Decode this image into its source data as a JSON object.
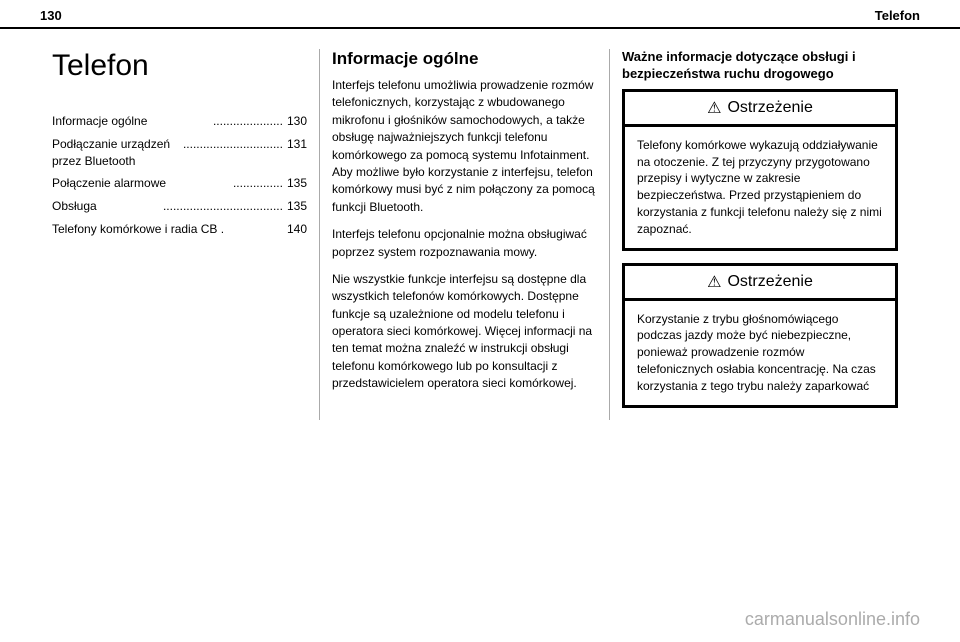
{
  "header": {
    "page_number": "130",
    "section_name": "Telefon"
  },
  "col1": {
    "title": "Telefon",
    "toc": [
      {
        "label": "Informacje ogólne",
        "dots": ".....................",
        "page": "130"
      },
      {
        "label": "Podłączanie urządzeń przez Bluetooth",
        "dots": "..............................",
        "page": "131"
      },
      {
        "label": "Połączenie alarmowe",
        "dots": "...............",
        "page": "135"
      },
      {
        "label": "Obsługa",
        "dots": "....................................",
        "page": "135"
      },
      {
        "label": "Telefony komórkowe i radia CB .",
        "dots": "",
        "page": "140"
      }
    ]
  },
  "col2": {
    "heading": "Informacje ogólne",
    "para1": "Interfejs telefonu umożliwia prowadzenie rozmów telefonicznych, korzystając z wbudowanego mikrofonu i głośników samochodowych, a także obsługę najważniejszych funkcji telefonu komórkowego za pomocą systemu Infotainment. Aby możliwe było korzystanie z interfejsu, telefon komórkowy musi być z nim połączony za pomocą funkcji Bluetooth.",
    "para2": "Interfejs telefonu opcjonalnie można obsługiwać poprzez system rozpoznawania mowy.",
    "para3": "Nie wszystkie funkcje interfejsu są dostępne dla wszystkich telefonów komórkowych. Dostępne funkcje są uzależnione od modelu telefonu i operatora sieci komórkowej. Więcej informacji na ten temat można znaleźć w instrukcji obsługi telefonu komórkowego lub po konsultacji z przedstawicielem operatora sieci komórkowej."
  },
  "col3": {
    "subheading": "Ważne informacje dotyczące obsługi i bezpieczeństwa ruchu drogowego",
    "warning_label": "Ostrzeżenie",
    "warning_icon": "⚠",
    "warning1_body": "Telefony komórkowe wykazują oddziaływanie na otoczenie. Z tej przyczyny przygotowano przepisy i wytyczne w zakresie bezpieczeństwa. Przed przystąpieniem do korzystania z funkcji telefonu należy się z nimi zapoznać.",
    "warning2_body": "Korzystanie z trybu głośnomówiącego podczas jazdy może być niebezpieczne, ponieważ prowadzenie rozmów telefonicznych osłabia koncentrację. Na czas korzystania z tego trybu należy zaparkować"
  },
  "watermark": "carmanualsonline.info"
}
